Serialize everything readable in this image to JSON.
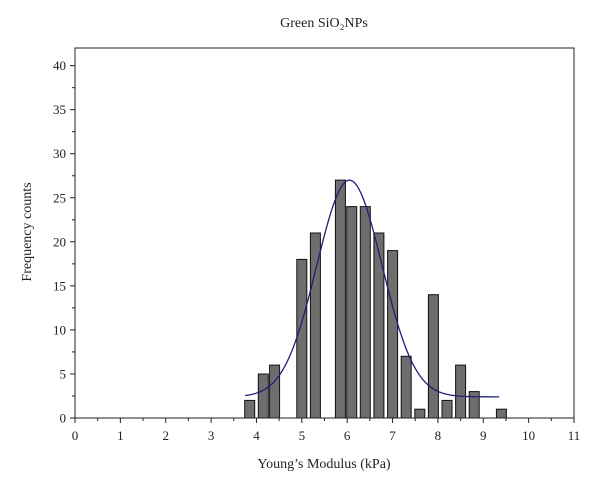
{
  "chart_data": {
    "type": "bar",
    "title": "Green SiO₂NPs",
    "xlabel": "Young’s Modulus (kPa)",
    "ylabel": "Frequency counts",
    "xlim": [
      0,
      11
    ],
    "ylim": [
      0,
      42
    ],
    "x_ticks": [
      "0",
      "1",
      "2",
      "3",
      "4",
      "5",
      "6",
      "7",
      "8",
      "9",
      "10",
      "11"
    ],
    "y_ticks": [
      "0",
      "5",
      "10",
      "15",
      "20",
      "25",
      "30",
      "35",
      "40"
    ],
    "bar_width": 0.22,
    "x": [
      3.85,
      4.15,
      4.4,
      5.0,
      5.3,
      5.85,
      6.1,
      6.4,
      6.7,
      7.0,
      7.3,
      7.6,
      7.9,
      8.2,
      8.5,
      8.8,
      9.4
    ],
    "values": [
      2,
      5,
      6,
      18,
      21,
      27,
      24,
      24,
      21,
      19,
      7,
      1,
      14,
      2,
      6,
      3,
      1
    ],
    "fit_curve": {
      "type": "gaussian",
      "baseline": 2.4,
      "amplitude": 24.6,
      "center": 6.05,
      "sigma": 0.72,
      "x_range": [
        3.75,
        9.35
      ]
    },
    "colors": {
      "bar_fill": "#6e6e6e",
      "bar_edge": "#111111",
      "curve": "#1f1f7a",
      "axis": "#222222"
    },
    "grid": false,
    "legend": "none"
  }
}
